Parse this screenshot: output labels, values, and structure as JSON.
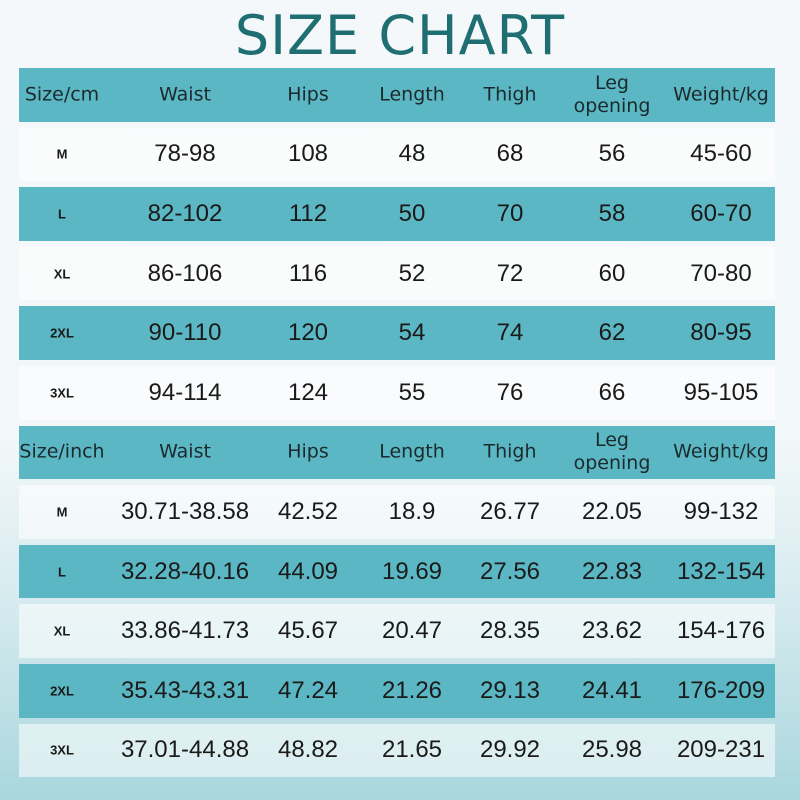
{
  "title": "SIZE CHART",
  "colors": {
    "title": "#1f6e72",
    "band": "#5bb7c3"
  },
  "tables": [
    {
      "headers": [
        "Size/cm",
        "Waist",
        "Hips",
        "Length",
        "Thigh",
        "Leg\nopening",
        "Weight/kg"
      ],
      "rows": [
        [
          "M",
          "78-98",
          "108",
          "48",
          "68",
          "56",
          "45-60"
        ],
        [
          "L",
          "82-102",
          "112",
          "50",
          "70",
          "58",
          "60-70"
        ],
        [
          "XL",
          "86-106",
          "116",
          "52",
          "72",
          "60",
          "70-80"
        ],
        [
          "2XL",
          "90-110",
          "120",
          "54",
          "74",
          "62",
          "80-95"
        ],
        [
          "3XL",
          "94-114",
          "124",
          "55",
          "76",
          "66",
          "95-105"
        ]
      ]
    },
    {
      "headers": [
        "Size/inch",
        "Waist",
        "Hips",
        "Length",
        "Thigh",
        "Leg\nopening",
        "Weight/kg"
      ],
      "rows": [
        [
          "M",
          "30.71-38.58",
          "42.52",
          "18.9",
          "26.77",
          "22.05",
          "99-132"
        ],
        [
          "L",
          "32.28-40.16",
          "44.09",
          "19.69",
          "27.56",
          "22.83",
          "132-154"
        ],
        [
          "XL",
          "33.86-41.73",
          "45.67",
          "20.47",
          "28.35",
          "23.62",
          "154-176"
        ],
        [
          "2XL",
          "35.43-43.31",
          "47.24",
          "21.26",
          "29.13",
          "24.41",
          "176-209"
        ],
        [
          "3XL",
          "37.01-44.88",
          "48.82",
          "21.65",
          "29.92",
          "25.98",
          "209-231"
        ]
      ]
    }
  ]
}
